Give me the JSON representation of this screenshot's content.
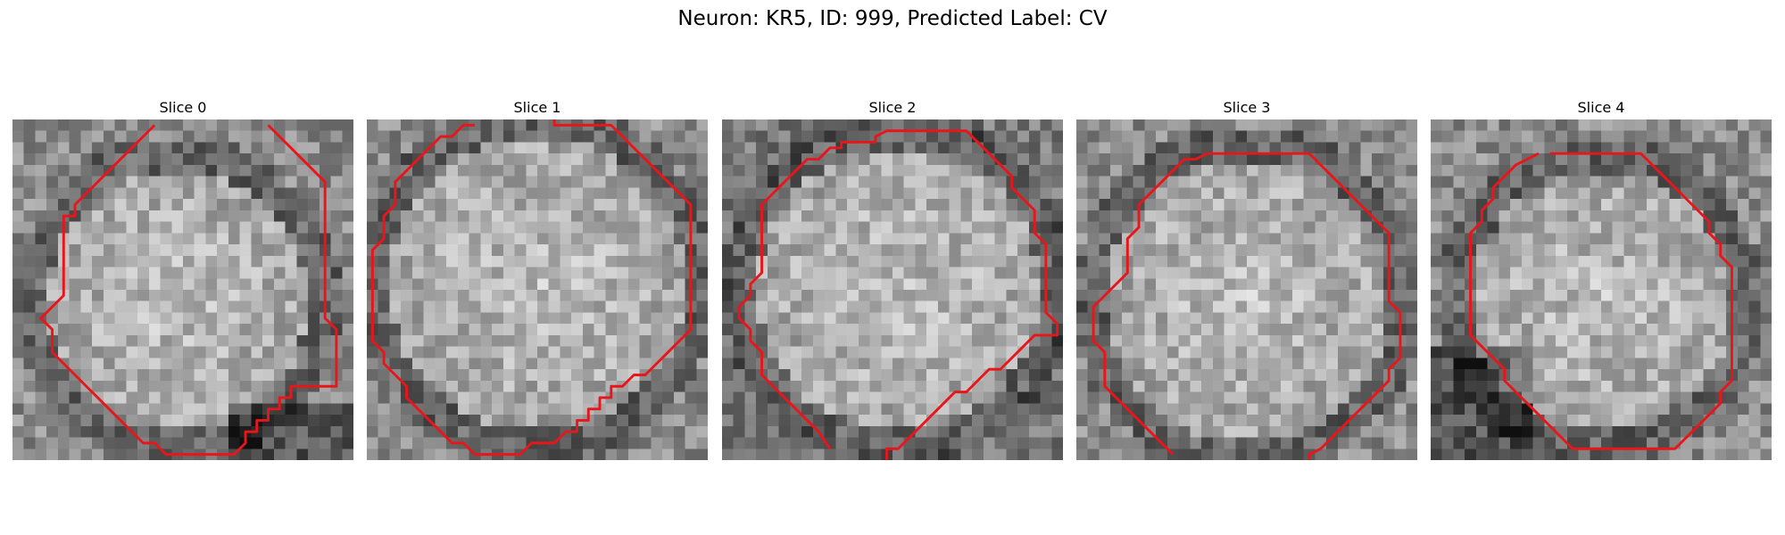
{
  "figure": {
    "title": "Neuron: KR5, ID: 999, Predicted Label: CV"
  },
  "contour_color": "#e8161b",
  "panels": [
    {
      "label": "Slice 0",
      "contour": [
        [
          12,
          0
        ],
        [
          11,
          1
        ],
        [
          10,
          2
        ],
        [
          9,
          3
        ],
        [
          8,
          4
        ],
        [
          7,
          5
        ],
        [
          6,
          6
        ],
        [
          5,
          7
        ],
        [
          5,
          8
        ],
        [
          4,
          8
        ],
        [
          4,
          9
        ],
        [
          4,
          10
        ],
        [
          4,
          11
        ],
        [
          4,
          12
        ],
        [
          4,
          13
        ],
        [
          4,
          14
        ],
        [
          4,
          15
        ],
        [
          3,
          16
        ],
        [
          2,
          17
        ],
        [
          3,
          18
        ],
        [
          3,
          19
        ],
        [
          3,
          20
        ],
        [
          4,
          21
        ],
        [
          5,
          22
        ],
        [
          6,
          23
        ],
        [
          7,
          24
        ],
        [
          8,
          25
        ],
        [
          9,
          26
        ],
        [
          10,
          27
        ],
        [
          11,
          28
        ],
        [
          12,
          28
        ],
        [
          13,
          29
        ],
        [
          14,
          29
        ],
        [
          15,
          29
        ],
        [
          16,
          29
        ],
        [
          17,
          29
        ],
        [
          18,
          29
        ],
        [
          19,
          29
        ],
        [
          20,
          28
        ],
        [
          20,
          27
        ],
        [
          21,
          27
        ],
        [
          21,
          26
        ],
        [
          22,
          26
        ],
        [
          22,
          25
        ],
        [
          23,
          25
        ],
        [
          23,
          24
        ],
        [
          24,
          24
        ],
        [
          24,
          23
        ],
        [
          25,
          23
        ],
        [
          26,
          23
        ],
        [
          27,
          23
        ],
        [
          28,
          23
        ],
        [
          28,
          22
        ],
        [
          28,
          21
        ],
        [
          28,
          20
        ],
        [
          28,
          19
        ],
        [
          28,
          18
        ],
        [
          27,
          17
        ],
        [
          27,
          16
        ],
        [
          27,
          15
        ],
        [
          27,
          14
        ],
        [
          27,
          13
        ],
        [
          27,
          12
        ],
        [
          27,
          11
        ],
        [
          27,
          10
        ],
        [
          27,
          9
        ],
        [
          27,
          8
        ],
        [
          27,
          7
        ],
        [
          27,
          6
        ],
        [
          27,
          5
        ],
        [
          26,
          4
        ],
        [
          25,
          3
        ],
        [
          24,
          2
        ],
        [
          23,
          1
        ],
        [
          22,
          0
        ]
      ]
    },
    {
      "label": "Slice 1",
      "contour": [
        [
          9,
          0
        ],
        [
          8,
          0
        ],
        [
          7,
          1
        ],
        [
          6,
          1
        ],
        [
          5,
          2
        ],
        [
          4,
          3
        ],
        [
          3,
          4
        ],
        [
          2,
          5
        ],
        [
          2,
          6
        ],
        [
          2,
          7
        ],
        [
          1,
          8
        ],
        [
          1,
          9
        ],
        [
          1,
          10
        ],
        [
          0,
          11
        ],
        [
          0,
          12
        ],
        [
          0,
          13
        ],
        [
          0,
          14
        ],
        [
          0,
          15
        ],
        [
          0,
          16
        ],
        [
          0,
          17
        ],
        [
          0,
          18
        ],
        [
          0,
          19
        ],
        [
          1,
          20
        ],
        [
          1,
          21
        ],
        [
          2,
          22
        ],
        [
          3,
          23
        ],
        [
          3,
          24
        ],
        [
          4,
          25
        ],
        [
          5,
          26
        ],
        [
          6,
          27
        ],
        [
          7,
          28
        ],
        [
          8,
          28
        ],
        [
          9,
          29
        ],
        [
          10,
          29
        ],
        [
          11,
          29
        ],
        [
          12,
          29
        ],
        [
          13,
          29
        ],
        [
          14,
          28
        ],
        [
          15,
          28
        ],
        [
          16,
          28
        ],
        [
          17,
          27
        ],
        [
          18,
          27
        ],
        [
          18,
          26
        ],
        [
          19,
          26
        ],
        [
          19,
          25
        ],
        [
          20,
          25
        ],
        [
          20,
          24
        ],
        [
          21,
          24
        ],
        [
          21,
          23
        ],
        [
          22,
          23
        ],
        [
          23,
          22
        ],
        [
          24,
          22
        ],
        [
          25,
          21
        ],
        [
          26,
          20
        ],
        [
          27,
          19
        ],
        [
          28,
          18
        ],
        [
          28,
          17
        ],
        [
          28,
          16
        ],
        [
          28,
          15
        ],
        [
          28,
          14
        ],
        [
          28,
          13
        ],
        [
          28,
          12
        ],
        [
          28,
          11
        ],
        [
          28,
          10
        ],
        [
          28,
          9
        ],
        [
          28,
          8
        ],
        [
          28,
          7
        ],
        [
          27,
          6
        ],
        [
          26,
          5
        ],
        [
          25,
          4
        ],
        [
          24,
          3
        ],
        [
          23,
          2
        ],
        [
          22,
          1
        ],
        [
          21,
          0
        ],
        [
          20,
          0
        ],
        [
          19,
          0
        ],
        [
          18,
          0
        ],
        [
          17,
          0
        ],
        [
          16,
          0
        ],
        [
          16,
          -0.5
        ]
      ]
    },
    {
      "label": "Slice 2",
      "contour": [
        [
          9,
          28.5
        ],
        [
          8,
          27
        ],
        [
          7,
          26
        ],
        [
          6,
          25
        ],
        [
          5,
          24
        ],
        [
          4,
          23
        ],
        [
          3,
          22
        ],
        [
          3,
          21
        ],
        [
          3,
          20
        ],
        [
          2,
          19
        ],
        [
          2,
          18
        ],
        [
          1,
          17
        ],
        [
          1,
          16
        ],
        [
          2,
          15
        ],
        [
          2,
          14
        ],
        [
          3,
          13
        ],
        [
          3,
          12
        ],
        [
          3,
          11
        ],
        [
          3,
          10
        ],
        [
          3,
          9
        ],
        [
          3,
          8
        ],
        [
          3,
          7
        ],
        [
          4,
          6
        ],
        [
          5,
          5
        ],
        [
          6,
          4
        ],
        [
          7,
          3
        ],
        [
          8,
          3
        ],
        [
          9,
          2
        ],
        [
          10,
          2
        ],
        [
          10,
          1.5
        ],
        [
          11,
          1.5
        ],
        [
          12,
          1.5
        ],
        [
          13,
          1.5
        ],
        [
          13,
          1
        ],
        [
          14,
          0.5
        ],
        [
          15,
          0.5
        ],
        [
          16,
          0.5
        ],
        [
          17,
          0.5
        ],
        [
          18,
          0.5
        ],
        [
          19,
          0.5
        ],
        [
          20,
          0.5
        ],
        [
          21,
          0.5
        ],
        [
          22,
          1.5
        ],
        [
          23,
          2.5
        ],
        [
          24,
          3.5
        ],
        [
          25,
          4.5
        ],
        [
          25,
          5.5
        ],
        [
          26,
          6.5
        ],
        [
          27,
          7.5
        ],
        [
          27,
          8.5
        ],
        [
          27,
          9.5
        ],
        [
          28,
          10.5
        ],
        [
          28,
          11.5
        ],
        [
          28,
          12.5
        ],
        [
          28,
          13.5
        ],
        [
          28,
          14.5
        ],
        [
          28,
          15.5
        ],
        [
          28,
          16.5
        ],
        [
          29,
          17.5
        ],
        [
          29,
          18.5
        ],
        [
          28,
          18.5
        ],
        [
          27,
          18.5
        ],
        [
          26,
          19.5
        ],
        [
          25,
          20.5
        ],
        [
          24,
          21.5
        ],
        [
          23,
          21.5
        ],
        [
          22,
          22.5
        ],
        [
          21,
          23.5
        ],
        [
          20,
          23.5
        ],
        [
          19,
          24.5
        ],
        [
          18,
          25.5
        ],
        [
          17,
          26.5
        ],
        [
          16,
          27.5
        ],
        [
          15,
          28.5
        ],
        [
          14,
          28.5
        ],
        [
          14,
          29.5
        ]
      ]
    },
    {
      "label": "Slice 3",
      "contour": [
        [
          8,
          29
        ],
        [
          7,
          28
        ],
        [
          6,
          27
        ],
        [
          5,
          26
        ],
        [
          4,
          25
        ],
        [
          3,
          24
        ],
        [
          2,
          23
        ],
        [
          2,
          22
        ],
        [
          2,
          21
        ],
        [
          2,
          20
        ],
        [
          1,
          19
        ],
        [
          1,
          18
        ],
        [
          1,
          17
        ],
        [
          1,
          16
        ],
        [
          2,
          15
        ],
        [
          3,
          14
        ],
        [
          4,
          13
        ],
        [
          4,
          12
        ],
        [
          4,
          11
        ],
        [
          4,
          10
        ],
        [
          5,
          9
        ],
        [
          5,
          8
        ],
        [
          5,
          7
        ],
        [
          6,
          6
        ],
        [
          7,
          5
        ],
        [
          8,
          4
        ],
        [
          9,
          3
        ],
        [
          10,
          3
        ],
        [
          11,
          2.5
        ],
        [
          12,
          2.5
        ],
        [
          13,
          2.5
        ],
        [
          14,
          2.5
        ],
        [
          15,
          2.5
        ],
        [
          16,
          2.5
        ],
        [
          17,
          2.5
        ],
        [
          18,
          2.5
        ],
        [
          19,
          2.5
        ],
        [
          20,
          2.5
        ],
        [
          21,
          3.5
        ],
        [
          22,
          4.5
        ],
        [
          23,
          5.5
        ],
        [
          24,
          6.5
        ],
        [
          25,
          7.5
        ],
        [
          26,
          8.5
        ],
        [
          27,
          9.5
        ],
        [
          27,
          10.5
        ],
        [
          27,
          11.5
        ],
        [
          27,
          12.5
        ],
        [
          27,
          13.5
        ],
        [
          27,
          14.5
        ],
        [
          27,
          15.5
        ],
        [
          28,
          16.5
        ],
        [
          28,
          17.5
        ],
        [
          28,
          18.5
        ],
        [
          28,
          19.5
        ],
        [
          28,
          20.5
        ],
        [
          27,
          21.5
        ],
        [
          27,
          22.5
        ],
        [
          26,
          23.5
        ],
        [
          25,
          24.5
        ],
        [
          24,
          25.5
        ],
        [
          23,
          26.5
        ],
        [
          22,
          27.5
        ],
        [
          21,
          28.5
        ],
        [
          20,
          29
        ],
        [
          20,
          29.5
        ]
      ]
    },
    {
      "label": "Slice 4",
      "contour": [
        [
          9,
          2.5
        ],
        [
          8,
          3
        ],
        [
          7,
          3.5
        ],
        [
          6,
          4.5
        ],
        [
          5,
          5.5
        ],
        [
          5,
          6.5
        ],
        [
          4,
          7.5
        ],
        [
          4,
          8.5
        ],
        [
          3,
          9.5
        ],
        [
          3,
          10.5
        ],
        [
          3,
          11.5
        ],
        [
          3,
          12.5
        ],
        [
          3,
          13.5
        ],
        [
          3,
          14.5
        ],
        [
          3,
          15.5
        ],
        [
          3,
          16.5
        ],
        [
          3,
          17.5
        ],
        [
          3,
          18.5
        ],
        [
          4,
          19.5
        ],
        [
          5,
          20.5
        ],
        [
          6,
          21.5
        ],
        [
          6,
          22.5
        ],
        [
          7,
          23.5
        ],
        [
          8,
          24.5
        ],
        [
          9,
          25.5
        ],
        [
          10,
          26.5
        ],
        [
          11,
          27.5
        ],
        [
          12,
          28.5
        ],
        [
          13,
          28.5
        ],
        [
          14,
          28.5
        ],
        [
          15,
          28.5
        ],
        [
          16,
          28.5
        ],
        [
          17,
          28.5
        ],
        [
          18,
          28.5
        ],
        [
          19,
          28.5
        ],
        [
          20,
          28.5
        ],
        [
          21,
          28.5
        ],
        [
          22,
          27.5
        ],
        [
          23,
          26.5
        ],
        [
          24,
          25.5
        ],
        [
          25,
          24.5
        ],
        [
          25,
          23.5
        ],
        [
          26,
          22.5
        ],
        [
          26,
          21.5
        ],
        [
          26,
          20.5
        ],
        [
          26,
          19.5
        ],
        [
          26,
          18.5
        ],
        [
          26,
          17.5
        ],
        [
          26,
          16.5
        ],
        [
          26,
          15.5
        ],
        [
          26,
          14.5
        ],
        [
          26,
          13.5
        ],
        [
          26,
          12.5
        ],
        [
          25,
          11.5
        ],
        [
          25,
          10.5
        ],
        [
          24,
          9.5
        ],
        [
          24,
          8.5
        ],
        [
          23,
          7.5
        ],
        [
          22,
          6.5
        ],
        [
          21,
          5.5
        ],
        [
          20,
          4.5
        ],
        [
          19,
          3.5
        ],
        [
          18,
          2.5
        ],
        [
          17,
          2.5
        ],
        [
          16,
          2.5
        ],
        [
          15,
          2.5
        ],
        [
          14,
          2.5
        ],
        [
          13,
          2.5
        ],
        [
          12,
          2.5
        ],
        [
          11,
          2.5
        ],
        [
          10,
          2.5
        ]
      ]
    }
  ]
}
